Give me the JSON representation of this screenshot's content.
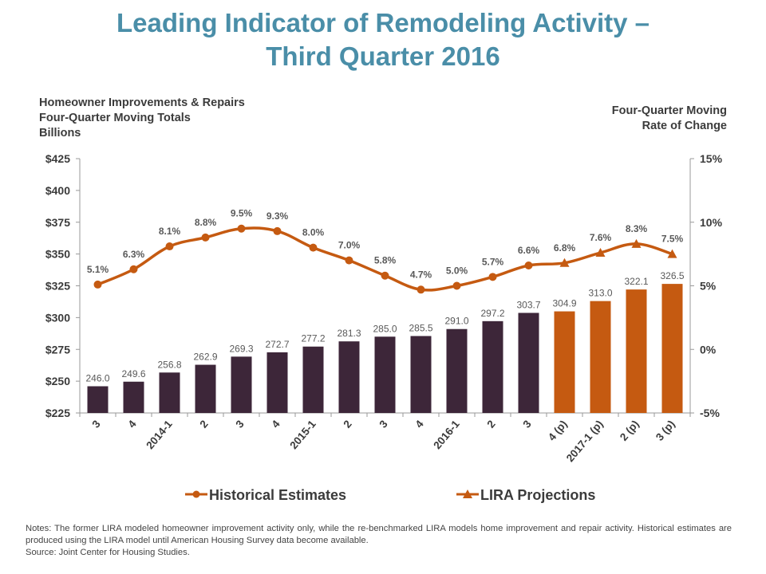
{
  "title_line1": "Leading Indicator of Remodeling Activity –",
  "title_line2": "Third Quarter 2016",
  "left_axis_title": [
    "Homeowner Improvements & Repairs",
    "Four-Quarter Moving Totals",
    "Billions"
  ],
  "right_axis_title": [
    "Four-Quarter Moving",
    "Rate of Change"
  ],
  "notes": [
    "Notes: The former LIRA modeled homeowner improvement activity only, while the re-benchmarked LIRA models home improvement and repair activity. Historical estimates are produced using the LIRA model until American Housing Survey data become available.",
    "Source: Joint Center for Housing Studies."
  ],
  "colors": {
    "title": "#4a8ea8",
    "historical_bar": "#3d2639",
    "projection": "#c55a11",
    "line": "#c55a11",
    "text": "#595959"
  },
  "chart_data": {
    "type": "bar+line",
    "categories": [
      "3",
      "4",
      "2014-1",
      "2",
      "3",
      "4",
      "2015-1",
      "2",
      "3",
      "4",
      "2016-1",
      "2",
      "3",
      "4 (p)",
      "2017-1 (p)",
      "2 (p)",
      "3 (p)"
    ],
    "bars": {
      "axis": "left",
      "values": [
        246.0,
        249.6,
        256.8,
        262.9,
        269.3,
        272.7,
        277.2,
        281.3,
        285.0,
        285.5,
        291.0,
        297.2,
        303.7,
        304.9,
        313.0,
        322.1,
        326.5
      ],
      "labels": [
        "246.0",
        "249.6",
        "256.8",
        "262.9",
        "269.3",
        "272.7",
        "277.2",
        "281.3",
        "285.0",
        "285.5",
        "291.0",
        "297.2",
        "303.7",
        "304.9",
        "313.0",
        "322.1",
        "326.5"
      ],
      "projected_from_index": 13
    },
    "line": {
      "axis": "right",
      "values": [
        5.1,
        6.3,
        8.1,
        8.8,
        9.5,
        9.3,
        8.0,
        7.0,
        5.8,
        4.7,
        5.0,
        5.7,
        6.6,
        6.8,
        7.6,
        8.3,
        7.5
      ],
      "labels": [
        "5.1%",
        "6.3%",
        "8.1%",
        "8.8%",
        "9.5%",
        "9.3%",
        "8.0%",
        "7.0%",
        "5.8%",
        "4.7%",
        "5.0%",
        "5.7%",
        "6.6%",
        "6.8%",
        "7.6%",
        "8.3%",
        "7.5%"
      ]
    },
    "series": [
      {
        "name": "Historical Estimates",
        "marker": "circle"
      },
      {
        "name": "LIRA Projections",
        "marker": "triangle"
      }
    ],
    "left_axis": {
      "ylim": [
        225,
        425
      ],
      "ticks": [
        "$225",
        "$250",
        "$275",
        "$300",
        "$325",
        "$350",
        "$375",
        "$400",
        "$425"
      ]
    },
    "right_axis": {
      "ylim": [
        -5,
        15
      ],
      "ticks": [
        "-5%",
        "0%",
        "5%",
        "10%",
        "15%"
      ]
    },
    "legend": "bottom",
    "grid": false
  }
}
